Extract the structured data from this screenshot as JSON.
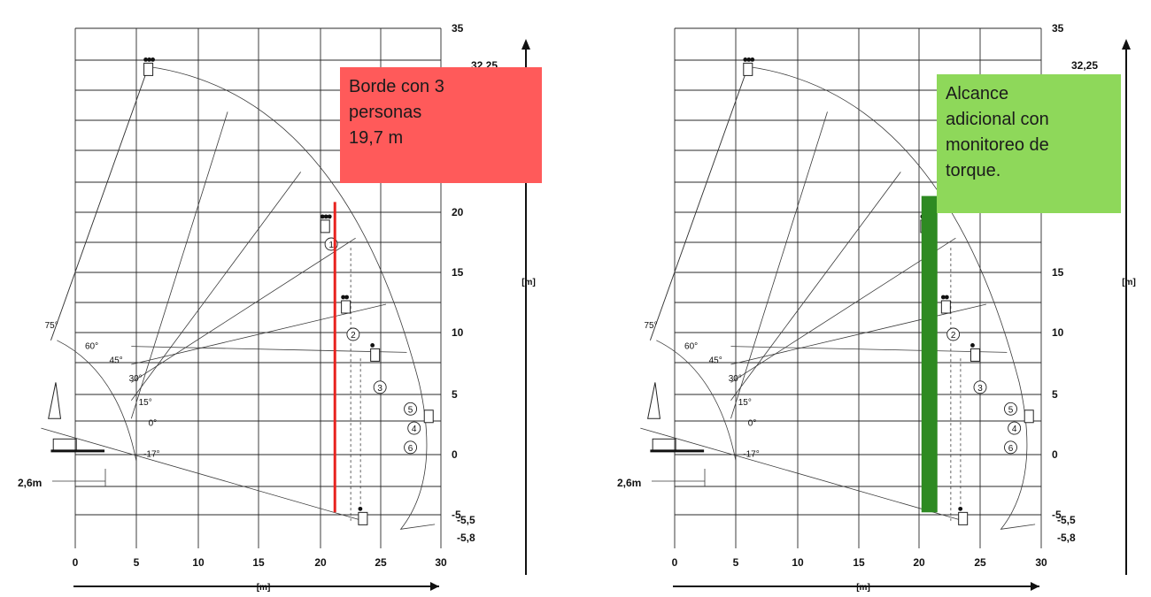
{
  "charts": [
    {
      "id": "left",
      "x_ticks": [
        "0",
        "5",
        "10",
        "15",
        "20",
        "25",
        "30"
      ],
      "y_ticks": [
        "35",
        "20",
        "15",
        "10",
        "5",
        "0",
        "-5"
      ],
      "y_extra": {
        "top": "32,25",
        "bottom_a": "-5,5",
        "bottom_b": "-5,8"
      },
      "x_unit": "[m]",
      "y_unit": "[m]",
      "offset_label": "2,6m",
      "angles": [
        "75°",
        "60°",
        "45°",
        "30°",
        "15°",
        "0°",
        "-17°"
      ],
      "circled": [
        "1",
        "2",
        "3",
        "5",
        "4",
        "6"
      ],
      "annotation": {
        "lines": [
          "Borde con 3",
          "personas",
          "19,7 m"
        ],
        "color": "#ff5a5a"
      },
      "highlight": {
        "type": "line",
        "color": "#e8231f"
      }
    },
    {
      "id": "right",
      "x_ticks": [
        "0",
        "5",
        "10",
        "15",
        "20",
        "25",
        "30"
      ],
      "y_ticks": [
        "35",
        "15",
        "10",
        "5",
        "0",
        "-5"
      ],
      "y_extra": {
        "top": "32,25",
        "bottom_a": "-5,5",
        "bottom_b": "-5,8"
      },
      "x_unit": "[m]",
      "y_unit": "[m]",
      "offset_label": "2,6m",
      "angles": [
        "75°",
        "60°",
        "45°",
        "30°",
        "15°",
        "0°",
        "-17°"
      ],
      "circled": [
        "2",
        "3",
        "5",
        "4",
        "6"
      ],
      "annotation": {
        "lines": [
          "Alcance",
          "adicional con",
          "monitoreo de",
          "torque."
        ],
        "color": "#8ed85a"
      },
      "highlight": {
        "type": "bar",
        "color": "#2e8a22"
      }
    }
  ]
}
